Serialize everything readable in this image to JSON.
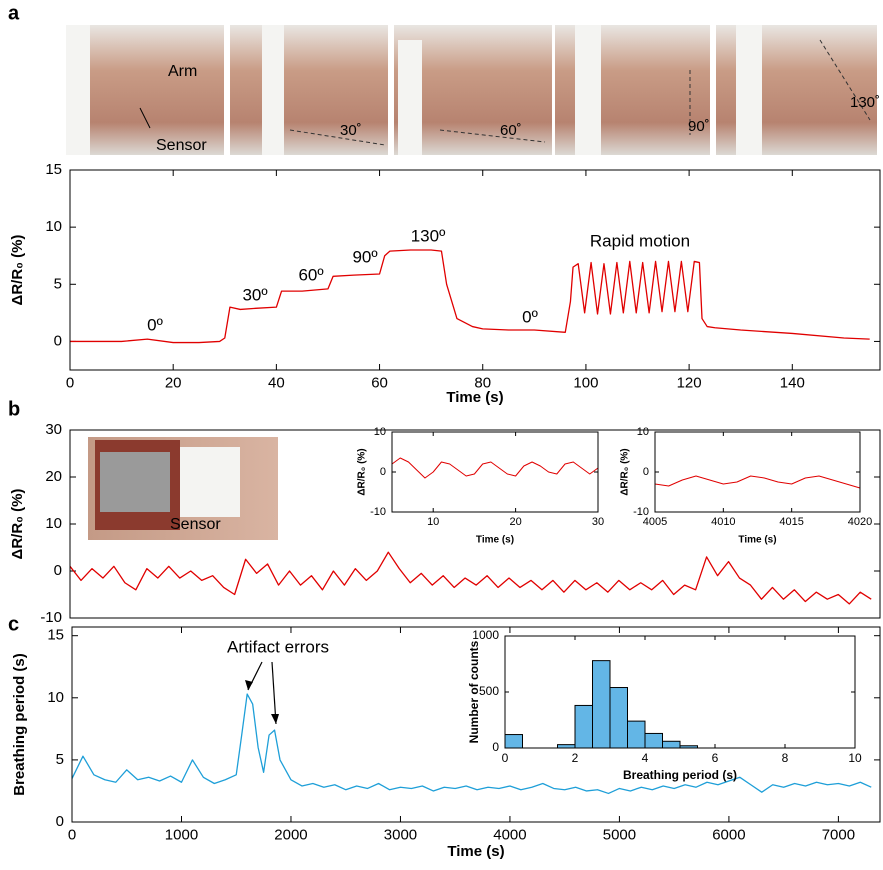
{
  "panel_labels": [
    "a",
    "b",
    "c"
  ],
  "photo_labels": [
    "Arm",
    "Sensor",
    "30˚",
    "60˚",
    "90˚",
    "130˚",
    "Sensor"
  ],
  "chart_data": [
    {
      "type": "line",
      "xlabel": "Time (s)",
      "ylabel": "ΔR/R₀ (%)",
      "color": "#e00000",
      "xlim": [
        0,
        157
      ],
      "ylim": [
        -2.5,
        15
      ],
      "xticks": [
        0,
        20,
        40,
        60,
        80,
        100,
        120,
        140
      ],
      "yticks": [
        0,
        5,
        10,
        15
      ],
      "annotations": [
        "0º",
        "30º",
        "60º",
        "90º",
        "130º",
        "0º",
        "Rapid motion"
      ],
      "x": [
        0,
        5,
        10,
        15,
        20,
        25,
        29,
        30,
        31,
        33,
        36,
        40,
        41,
        45,
        50,
        51,
        55,
        60,
        61,
        62,
        66,
        70,
        72,
        73,
        75,
        78,
        80,
        85,
        90,
        96,
        97,
        97.5,
        98.5,
        99.75,
        101,
        102.25,
        103.5,
        104.75,
        106,
        107.25,
        108.5,
        109.75,
        111,
        112.25,
        113.5,
        114.75,
        116,
        117.25,
        118.5,
        119.75,
        121,
        122,
        122.5,
        123.5,
        125,
        130,
        140,
        150,
        155
      ],
      "values": [
        0,
        0,
        0,
        0.2,
        -0.1,
        -0.1,
        0,
        0.3,
        3,
        2.8,
        2.9,
        3,
        4.4,
        4.4,
        4.6,
        5.7,
        5.8,
        5.9,
        7.5,
        7.9,
        8,
        8,
        7.9,
        5,
        2,
        1.3,
        1.1,
        1,
        1,
        0.8,
        3.5,
        6.5,
        6.8,
        2.5,
        6.9,
        2.4,
        6.8,
        2.4,
        6.9,
        2.5,
        7,
        2.5,
        6.9,
        2.5,
        7,
        2.6,
        7,
        2.6,
        7,
        2.6,
        7,
        6.9,
        2,
        1.3,
        1.2,
        1,
        0.7,
        0.3,
        0.2
      ]
    },
    {
      "type": "line",
      "ylabel": "ΔR/R₀ (%)",
      "color": "#e00000",
      "xlim": [
        0,
        7380
      ],
      "ylim": [
        -10,
        30
      ],
      "yticks": [
        -10,
        0,
        10,
        20,
        30
      ],
      "x": [
        0,
        100,
        200,
        300,
        400,
        500,
        600,
        700,
        800,
        900,
        1000,
        1100,
        1200,
        1300,
        1400,
        1500,
        1600,
        1700,
        1800,
        1900,
        2000,
        2100,
        2200,
        2300,
        2400,
        2500,
        2600,
        2700,
        2800,
        2900,
        3000,
        3100,
        3200,
        3300,
        3400,
        3500,
        3600,
        3700,
        3800,
        3900,
        4000,
        4100,
        4200,
        4300,
        4400,
        4500,
        4600,
        4700,
        4800,
        4900,
        5000,
        5100,
        5200,
        5300,
        5400,
        5500,
        5600,
        5700,
        5800,
        5900,
        6000,
        6100,
        6200,
        6300,
        6400,
        6500,
        6600,
        6700,
        6800,
        6900,
        7000,
        7100,
        7200,
        7300
      ],
      "values": [
        1,
        -2,
        0.5,
        -1.5,
        1,
        -2.5,
        -4,
        0.5,
        -1.5,
        1,
        -1.5,
        0,
        -2,
        -1,
        -3.5,
        -5,
        2.5,
        -0.5,
        1.5,
        -3,
        0,
        -3,
        -1,
        -4,
        0,
        -3,
        0.5,
        -2,
        0,
        4,
        0.5,
        -2.5,
        -0.5,
        -3,
        -1,
        -3.5,
        -1.5,
        -3,
        -1,
        -3.5,
        -1.5,
        -3.5,
        -2,
        -4,
        -2,
        -4.5,
        -2,
        -4,
        -2.5,
        -4.5,
        -2,
        -4,
        -2.5,
        -4,
        -2,
        -5,
        -3,
        -4,
        3,
        -1,
        2,
        -1.5,
        -3,
        -6,
        -3.5,
        -6,
        -4,
        -6.5,
        -4.5,
        -6,
        -5,
        -7,
        -4.5,
        -6
      ]
    },
    {
      "type": "line",
      "xlabel": "Time (s)",
      "ylabel": "ΔR/R₀ (%)",
      "color": "#e00000",
      "xlim": [
        5,
        30
      ],
      "ylim": [
        -10,
        10
      ],
      "xticks": [
        10,
        20,
        30
      ],
      "yticks": [
        -10,
        0,
        10
      ],
      "x": [
        5,
        6,
        7,
        8,
        9,
        10,
        11,
        12,
        13,
        14,
        15,
        16,
        17,
        18,
        19,
        20,
        21,
        22,
        23,
        24,
        25,
        26,
        27,
        28,
        29,
        30
      ],
      "values": [
        2,
        3.5,
        2.5,
        0.5,
        -1.5,
        0,
        2.5,
        2,
        0.5,
        -1,
        -0.5,
        2,
        2.5,
        1,
        -0.5,
        -1,
        1.5,
        2.5,
        1.5,
        0,
        -0.5,
        2,
        2.5,
        1,
        -0.5,
        1
      ]
    },
    {
      "type": "line",
      "xlabel": "Time (s)",
      "ylabel": "ΔR/R₀ (%)",
      "color": "#e00000",
      "xlim": [
        4005,
        4020
      ],
      "ylim": [
        -10,
        10
      ],
      "xticks": [
        4005,
        4010,
        4015,
        4020
      ],
      "yticks": [
        -10,
        0,
        10
      ],
      "x": [
        4005,
        4006,
        4007,
        4008,
        4009,
        4010,
        4011,
        4012,
        4013,
        4014,
        4015,
        4016,
        4017,
        4018,
        4019,
        4020
      ],
      "values": [
        -3,
        -3.5,
        -2,
        -1,
        -2,
        -3,
        -2.5,
        -1,
        -1.5,
        -2.5,
        -3,
        -1.5,
        -1,
        -2,
        -3,
        -4
      ]
    },
    {
      "type": "line",
      "xlabel": "Time (s)",
      "ylabel": "Breathing period (s)",
      "color": "#1e9fd8",
      "xlim": [
        0,
        7380
      ],
      "ylim": [
        0,
        15.7
      ],
      "xticks": [
        0,
        1000,
        2000,
        3000,
        4000,
        5000,
        6000,
        7000
      ],
      "yticks": [
        0,
        5,
        10,
        15
      ],
      "annotations": [
        "Artifact errors"
      ],
      "x": [
        0,
        100,
        200,
        300,
        400,
        500,
        600,
        700,
        800,
        900,
        1000,
        1100,
        1200,
        1300,
        1400,
        1500,
        1550,
        1600,
        1650,
        1700,
        1750,
        1800,
        1850,
        1900,
        2000,
        2100,
        2200,
        2300,
        2400,
        2500,
        2600,
        2700,
        2800,
        2900,
        3000,
        3100,
        3200,
        3300,
        3400,
        3500,
        3600,
        3700,
        3800,
        3900,
        4000,
        4100,
        4200,
        4300,
        4400,
        4500,
        4600,
        4700,
        4800,
        4900,
        5000,
        5100,
        5200,
        5300,
        5400,
        5500,
        5600,
        5700,
        5800,
        5900,
        6000,
        6100,
        6200,
        6300,
        6400,
        6500,
        6600,
        6700,
        6800,
        6900,
        7000,
        7100,
        7200,
        7300
      ],
      "values": [
        3.5,
        5.3,
        3.8,
        3.4,
        3.2,
        4.2,
        3.4,
        3.6,
        3.3,
        3.7,
        3.2,
        5,
        3.6,
        3.1,
        3.4,
        3.8,
        7,
        10.3,
        9.5,
        6,
        4,
        7,
        7.4,
        5,
        3.4,
        2.9,
        3.1,
        2.8,
        3,
        2.6,
        2.9,
        2.7,
        3.1,
        2.6,
        2.8,
        2.7,
        2.9,
        2.5,
        2.8,
        2.7,
        2.9,
        2.6,
        2.8,
        2.7,
        2.9,
        2.6,
        2.8,
        3.1,
        2.7,
        2.6,
        2.8,
        2.5,
        2.6,
        2.3,
        2.7,
        2.5,
        2.8,
        2.6,
        2.9,
        2.7,
        3.0,
        2.8,
        3.2,
        3.0,
        3.3,
        3.6,
        3.0,
        2.4,
        3.0,
        2.8,
        3.1,
        2.9,
        3.2,
        3.0,
        3.1,
        2.9,
        3.2,
        2.8
      ]
    },
    {
      "type": "histogram",
      "xlabel": "Breathing period (s)",
      "ylabel": "Number of counts",
      "color": "#63b6e6",
      "xlim": [
        0,
        10
      ],
      "ylim": [
        0,
        1000
      ],
      "xticks": [
        0,
        2,
        4,
        6,
        8,
        10
      ],
      "yticks": [
        0,
        500,
        1000
      ],
      "bins": [
        0,
        0.5,
        1,
        1.5,
        2,
        2.5,
        3,
        3.5,
        4,
        4.5,
        5,
        5.5,
        6,
        6.5,
        7,
        7.5,
        8,
        8.5,
        9,
        9.5,
        10
      ],
      "values": [
        120,
        0,
        0,
        30,
        380,
        780,
        540,
        240,
        130,
        60,
        20,
        0,
        0,
        0,
        0,
        0,
        0,
        0,
        0,
        0
      ]
    }
  ]
}
